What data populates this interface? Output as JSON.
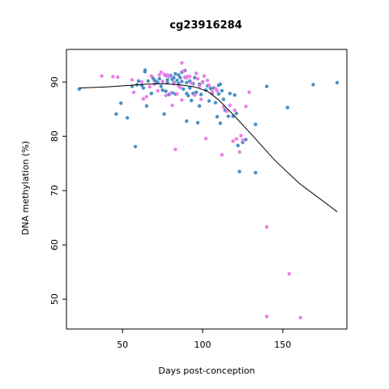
{
  "chart_data": {
    "type": "scatter",
    "title": "cg23916284",
    "xlabel": "Days post-conception",
    "ylabel": "DNA methylation (%)",
    "xlim": [
      15,
      190
    ],
    "ylim": [
      44.5,
      96
    ],
    "x_ticks": [
      50,
      100,
      150
    ],
    "y_ticks": [
      50,
      60,
      70,
      80,
      90
    ],
    "grid": false,
    "legend": "none",
    "colors": {
      "series_a": "#4a8fc4",
      "series_b": "#ec7de8",
      "trend": "#000000"
    },
    "series": [
      {
        "color": "series_a",
        "points": [
          [
            23,
            88.7
          ],
          [
            46,
            84.1
          ],
          [
            49,
            86.1
          ],
          [
            53,
            83.4
          ],
          [
            56,
            89.2
          ],
          [
            58,
            78.1
          ],
          [
            59,
            89.5
          ],
          [
            60,
            90.2
          ],
          [
            62,
            89.4
          ],
          [
            63,
            88.9
          ],
          [
            64,
            92.2
          ],
          [
            64,
            91.9
          ],
          [
            65,
            85.6
          ],
          [
            66,
            90.2
          ],
          [
            68,
            87.9
          ],
          [
            69,
            90.7
          ],
          [
            70,
            90.3
          ],
          [
            71,
            90.1
          ],
          [
            72,
            89.9
          ],
          [
            73,
            90.6
          ],
          [
            74,
            89.2
          ],
          [
            75,
            88.5
          ],
          [
            76,
            84.1
          ],
          [
            77,
            88.3
          ],
          [
            77,
            91.2
          ],
          [
            78,
            90.4
          ],
          [
            78,
            89.9
          ],
          [
            79,
            87.7
          ],
          [
            80,
            91.2
          ],
          [
            81,
            88.0
          ],
          [
            81,
            90.5
          ],
          [
            82,
            90.8
          ],
          [
            82,
            89.9
          ],
          [
            83,
            91.5
          ],
          [
            83,
            87.8
          ],
          [
            84,
            90.3
          ],
          [
            85,
            91.3
          ],
          [
            85,
            89.7
          ],
          [
            86,
            90.8
          ],
          [
            87,
            91.8
          ],
          [
            87,
            90.1
          ],
          [
            88,
            88.7
          ],
          [
            89,
            90.9
          ],
          [
            89,
            92.1
          ],
          [
            90,
            89.9
          ],
          [
            90,
            87.9
          ],
          [
            90,
            82.8
          ],
          [
            91,
            87.5
          ],
          [
            92,
            90.2
          ],
          [
            92,
            88.9
          ],
          [
            93,
            86.6
          ],
          [
            94,
            87.9
          ],
          [
            94,
            89.7
          ],
          [
            95,
            90.8
          ],
          [
            96,
            88.1
          ],
          [
            97,
            82.5
          ],
          [
            98,
            89.6
          ],
          [
            98,
            85.6
          ],
          [
            99,
            87.7
          ],
          [
            100,
            90.0
          ],
          [
            102,
            88.5
          ],
          [
            103,
            89.3
          ],
          [
            104,
            86.5
          ],
          [
            105,
            88.8
          ],
          [
            106,
            87.9
          ],
          [
            107,
            88.9
          ],
          [
            108,
            86.2
          ],
          [
            109,
            83.6
          ],
          [
            110,
            89.4
          ],
          [
            110,
            87.8
          ],
          [
            111,
            89.6
          ],
          [
            111,
            82.4
          ],
          [
            112,
            88.4
          ],
          [
            113,
            86.8
          ],
          [
            114,
            84.8
          ],
          [
            116,
            83.7
          ],
          [
            117,
            87.9
          ],
          [
            119,
            83.7
          ],
          [
            120,
            87.6
          ],
          [
            121,
            84.2
          ],
          [
            122,
            78.3
          ],
          [
            123,
            73.5
          ],
          [
            125,
            78.9
          ],
          [
            127,
            79.4
          ],
          [
            133,
            82.2
          ],
          [
            133,
            73.3
          ],
          [
            140,
            89.2
          ],
          [
            153,
            85.3
          ],
          [
            169,
            89.5
          ],
          [
            184,
            89.9
          ]
        ]
      },
      {
        "color": "series_b",
        "points": [
          [
            37,
            91.1
          ],
          [
            44,
            91.0
          ],
          [
            47,
            90.9
          ],
          [
            56,
            90.4
          ],
          [
            57,
            88.1
          ],
          [
            62,
            90.0
          ],
          [
            63,
            86.9
          ],
          [
            65,
            87.3
          ],
          [
            67,
            89.1
          ],
          [
            68,
            91.1
          ],
          [
            70,
            89.6
          ],
          [
            72,
            88.4
          ],
          [
            73,
            91.3
          ],
          [
            74,
            91.8
          ],
          [
            75,
            90.1
          ],
          [
            76,
            91.4
          ],
          [
            77,
            87.5
          ],
          [
            78,
            91.3
          ],
          [
            79,
            91.0
          ],
          [
            80,
            87.9
          ],
          [
            81,
            85.7
          ],
          [
            82,
            89.7
          ],
          [
            83,
            77.6
          ],
          [
            84,
            87.8
          ],
          [
            85,
            89.3
          ],
          [
            86,
            89.0
          ],
          [
            87,
            93.5
          ],
          [
            87,
            86.7
          ],
          [
            88,
            92.0
          ],
          [
            89,
            90.8
          ],
          [
            90,
            90.8
          ],
          [
            91,
            91.1
          ],
          [
            92,
            91.0
          ],
          [
            93,
            89.8
          ],
          [
            95,
            87.6
          ],
          [
            96,
            91.6
          ],
          [
            97,
            90.6
          ],
          [
            98,
            89.2
          ],
          [
            99,
            86.8
          ],
          [
            100,
            89.9
          ],
          [
            101,
            91.1
          ],
          [
            102,
            79.6
          ],
          [
            103,
            90.3
          ],
          [
            104,
            89.4
          ],
          [
            106,
            88.2
          ],
          [
            108,
            88.8
          ],
          [
            109,
            88.4
          ],
          [
            112,
            76.6
          ],
          [
            113,
            85.4
          ],
          [
            115,
            84.6
          ],
          [
            117,
            85.7
          ],
          [
            119,
            79.1
          ],
          [
            120,
            84.8
          ],
          [
            121,
            79.5
          ],
          [
            123,
            77.1
          ],
          [
            124,
            80.1
          ],
          [
            125,
            79.3
          ],
          [
            127,
            85.5
          ],
          [
            129,
            88.1
          ],
          [
            140,
            63.3
          ],
          [
            140,
            46.8
          ],
          [
            154,
            54.7
          ],
          [
            161,
            46.6
          ]
        ]
      }
    ],
    "trend_line": {
      "x": [
        23,
        40,
        55,
        65,
        75,
        85,
        95,
        103,
        110,
        120,
        130,
        145,
        160,
        184
      ],
      "y": [
        88.9,
        89.1,
        89.4,
        89.6,
        89.7,
        89.5,
        89.1,
        88.3,
        86.7,
        83.7,
        80.5,
        75.6,
        71.4,
        66.1
      ]
    }
  }
}
